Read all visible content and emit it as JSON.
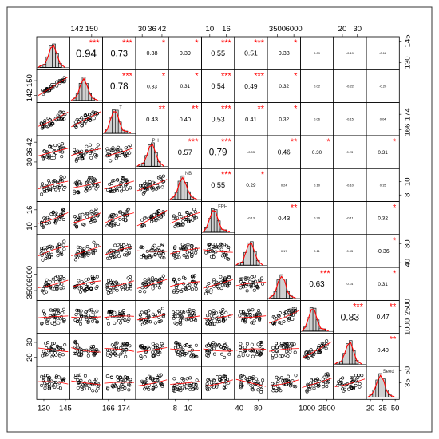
{
  "chart_data": {
    "type": "scatter-matrix",
    "variables": [
      "",
      "",
      "T",
      "PH",
      "NB",
      "FPH",
      "",
      "",
      "",
      "",
      "Seed"
    ],
    "frame_label": "",
    "correlations": [
      [
        "0.94",
        "0.73",
        "0.38",
        "0.39",
        "0.55",
        "0.51",
        "0.38",
        "0.09",
        "-0.19",
        "-0.12"
      ],
      [
        "0.78",
        "0.33",
        "0.31",
        "0.54",
        "0.49",
        "0.32",
        "0.02",
        "-0.22",
        "-0.20"
      ],
      [
        "0.43",
        "0.40",
        "0.53",
        "0.41",
        "0.32",
        "0.06",
        "-0.15",
        "0.04"
      ],
      [
        "0.57",
        "0.79",
        "-0.03",
        "0.46",
        "0.30",
        "0.23",
        "0.31"
      ],
      [
        "0.55",
        "0.29",
        "0.24",
        "0.10",
        "-0.10",
        "0.15"
      ],
      [
        "-0.13",
        "0.43",
        "0.20",
        "-0.11",
        "0.32"
      ],
      [
        "0.17",
        "0.11",
        "0.05",
        "-0.36"
      ],
      [
        "0.63",
        "0.14",
        "0.31"
      ],
      [
        "0.83",
        "0.47"
      ],
      [
        "0.40"
      ]
    ],
    "stars": [
      [
        "***",
        "***",
        "*",
        "*",
        "***",
        "***",
        "*",
        "",
        "",
        ""
      ],
      [
        "***",
        "*",
        "*",
        "***",
        "***",
        "*",
        "",
        "",
        ""
      ],
      [
        "**",
        "**",
        "***",
        "**",
        "*",
        "",
        "",
        ""
      ],
      [
        "***",
        "***",
        "",
        "**",
        "*",
        "",
        "*"
      ],
      [
        "***",
        "*",
        "",
        "",
        "",
        ""
      ],
      [
        "",
        "**",
        "",
        "",
        "*"
      ],
      [
        "",
        "",
        "",
        "*"
      ],
      [
        "***",
        "",
        "*"
      ],
      [
        "***",
        "**"
      ],
      [
        "**"
      ]
    ],
    "top_axis_ticks": [
      {
        "panel": 1,
        "labels": [
          "142",
          "150"
        ],
        "values": [
          142,
          150
        ],
        "range": [
          138,
          156
        ]
      },
      {
        "panel": 3,
        "labels": [
          "30",
          "36",
          "42"
        ],
        "values": [
          30,
          36,
          42
        ],
        "range": [
          26,
          46
        ]
      },
      {
        "panel": 5,
        "labels": [
          "10",
          "16"
        ],
        "values": [
          10,
          16
        ],
        "range": [
          7,
          19
        ]
      },
      {
        "panel": 7,
        "labels": [
          "3500",
          "6000"
        ],
        "values": [
          3500,
          6000
        ],
        "range": [
          2000,
          7000
        ]
      },
      {
        "panel": 9,
        "labels": [
          "20",
          "30"
        ],
        "values": [
          20,
          30
        ],
        "range": [
          14,
          36
        ]
      }
    ],
    "bottom_axis_ticks": [
      {
        "panel": 0,
        "labels": [
          "130",
          "145"
        ],
        "values": [
          130,
          145
        ],
        "range": [
          125,
          148
        ]
      },
      {
        "panel": 2,
        "labels": [
          "166",
          "174"
        ],
        "values": [
          166,
          174
        ],
        "range": [
          163,
          180
        ]
      },
      {
        "panel": 4,
        "labels": [
          "8",
          "10"
        ],
        "values": [
          8,
          10
        ],
        "range": [
          7,
          12
        ]
      },
      {
        "panel": 6,
        "labels": [
          "40",
          "80"
        ],
        "values": [
          40,
          80
        ],
        "range": [
          30,
          100
        ]
      },
      {
        "panel": 8,
        "labels": [
          "1000",
          "2500"
        ],
        "values": [
          1000,
          2500
        ],
        "range": [
          500,
          3000
        ]
      },
      {
        "panel": 10,
        "labels": [
          "20",
          "35",
          "50"
        ],
        "values": [
          20,
          35,
          50
        ],
        "range": [
          15,
          55
        ]
      }
    ],
    "left_axis_ticks": [
      {
        "panel": 1,
        "labels": [
          "142",
          "150"
        ],
        "values": [
          142,
          150
        ],
        "range": [
          138,
          156
        ]
      },
      {
        "panel": 3,
        "labels": [
          "30",
          "36",
          "42"
        ],
        "values": [
          30,
          36,
          42
        ],
        "range": [
          26,
          46
        ]
      },
      {
        "panel": 5,
        "labels": [
          "10",
          "16"
        ],
        "values": [
          10,
          16
        ],
        "range": [
          7,
          19
        ]
      },
      {
        "panel": 7,
        "labels": [
          "3500",
          "6000"
        ],
        "values": [
          3500,
          6000
        ],
        "range": [
          2000,
          7000
        ]
      },
      {
        "panel": 9,
        "labels": [
          "20",
          "30"
        ],
        "values": [
          20,
          30
        ],
        "range": [
          14,
          36
        ]
      }
    ],
    "right_axis_ticks": [
      {
        "panel": 0,
        "labels": [
          "130",
          "145"
        ],
        "values": [
          130,
          145
        ],
        "range": [
          125,
          148
        ]
      },
      {
        "panel": 2,
        "labels": [
          "166",
          "174"
        ],
        "values": [
          166,
          174
        ],
        "range": [
          163,
          180
        ]
      },
      {
        "panel": 4,
        "labels": [
          "8",
          "10"
        ],
        "values": [
          8,
          10
        ],
        "range": [
          7,
          12
        ]
      },
      {
        "panel": 6,
        "labels": [
          "40",
          "80"
        ],
        "values": [
          40,
          80
        ],
        "range": [
          30,
          100
        ]
      },
      {
        "panel": 8,
        "labels": [
          "1000",
          "2500"
        ],
        "values": [
          1000,
          2500
        ],
        "range": [
          500,
          3000
        ]
      },
      {
        "panel": 10,
        "labels": [
          "35",
          "50"
        ],
        "values": [
          35,
          50
        ],
        "range": [
          15,
          55
        ]
      }
    ],
    "diagonal": "histogram with density curve",
    "lower_panels": "scatter plots with loess smoothing line",
    "upper_panels": "correlation coefficients with significance stars",
    "colors": {
      "histogram_fill": "#d0d0d0",
      "density_line": "#ff0000",
      "smooth_line": "#ff0000",
      "stars": "#ff0000",
      "points": "#000000"
    }
  }
}
